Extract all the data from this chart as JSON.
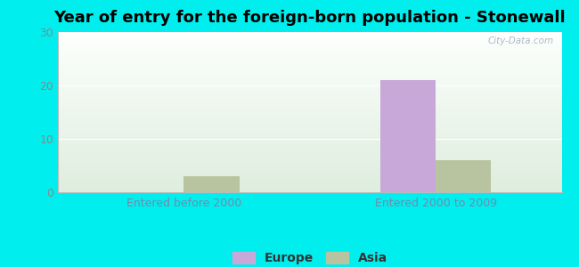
{
  "title": "Year of entry for the foreign-born population - Stonewall",
  "categories": [
    "Entered before 2000",
    "Entered 2000 to 2009"
  ],
  "europe_values": [
    0,
    21
  ],
  "asia_values": [
    3,
    6
  ],
  "europe_color": "#c8a8d8",
  "asia_color": "#b8c4a0",
  "ylim": [
    0,
    30
  ],
  "yticks": [
    0,
    10,
    20,
    30
  ],
  "background_color": "#00eeee",
  "bar_width": 0.22,
  "title_fontsize": 13,
  "tick_fontsize": 9,
  "legend_fontsize": 10,
  "watermark": "City-Data.com",
  "xtick_color": "#7788aa",
  "ytick_color": "#888888"
}
